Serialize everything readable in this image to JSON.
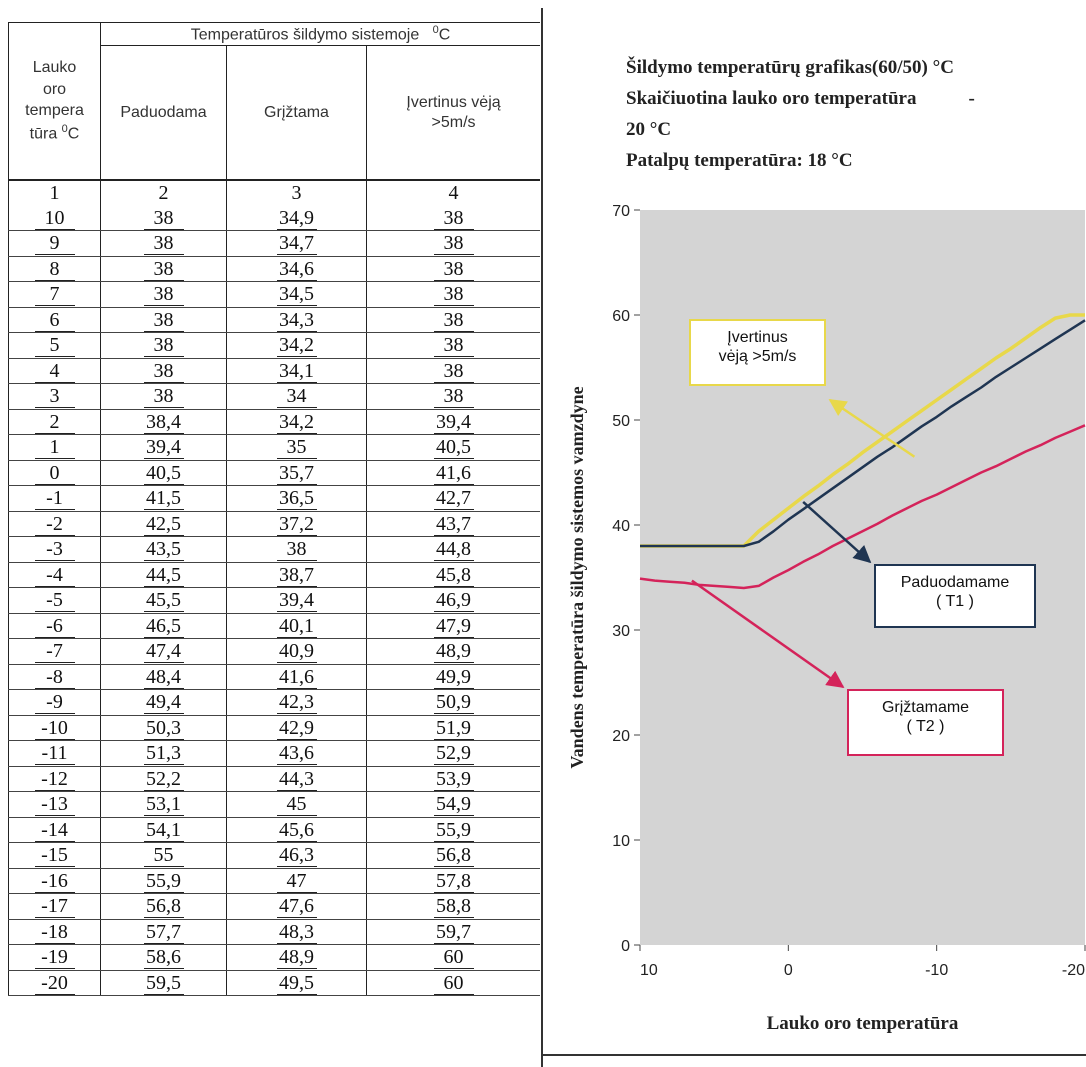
{
  "table": {
    "group_header": "Temperatūros šildymo sistemoje",
    "group_unit_sup": "0",
    "group_unit": "C",
    "col_outdoor": [
      "Lauko",
      "oro",
      "tempera",
      "tūra"
    ],
    "col_outdoor_unit_sup": "0",
    "col_outdoor_unit": "C",
    "col_supply": "Paduodama",
    "col_return": "Grįžtama",
    "col_wind": [
      "Įvertinus vėją",
      ">5m/s"
    ],
    "column_numbers": [
      "1",
      "2",
      "3",
      "4"
    ],
    "rows": [
      [
        "10",
        "38",
        "34,9",
        "38"
      ],
      [
        "9",
        "38",
        "34,7",
        "38"
      ],
      [
        "8",
        "38",
        "34,6",
        "38"
      ],
      [
        "7",
        "38",
        "34,5",
        "38"
      ],
      [
        "6",
        "38",
        "34,3",
        "38"
      ],
      [
        "5",
        "38",
        "34,2",
        "38"
      ],
      [
        "4",
        "38",
        "34,1",
        "38"
      ],
      [
        "3",
        "38",
        "34",
        "38"
      ],
      [
        "2",
        "38,4",
        "34,2",
        "39,4"
      ],
      [
        "1",
        "39,4",
        "35",
        "40,5"
      ],
      [
        "0",
        "40,5",
        "35,7",
        "41,6"
      ],
      [
        "-1",
        "41,5",
        "36,5",
        "42,7"
      ],
      [
        "-2",
        "42,5",
        "37,2",
        "43,7"
      ],
      [
        "-3",
        "43,5",
        "38",
        "44,8"
      ],
      [
        "-4",
        "44,5",
        "38,7",
        "45,8"
      ],
      [
        "-5",
        "45,5",
        "39,4",
        "46,9"
      ],
      [
        "-6",
        "46,5",
        "40,1",
        "47,9"
      ],
      [
        "-7",
        "47,4",
        "40,9",
        "48,9"
      ],
      [
        "-8",
        "48,4",
        "41,6",
        "49,9"
      ],
      [
        "-9",
        "49,4",
        "42,3",
        "50,9"
      ],
      [
        "-10",
        "50,3",
        "42,9",
        "51,9"
      ],
      [
        "-11",
        "51,3",
        "43,6",
        "52,9"
      ],
      [
        "-12",
        "52,2",
        "44,3",
        "53,9"
      ],
      [
        "-13",
        "53,1",
        "45",
        "54,9"
      ],
      [
        "-14",
        "54,1",
        "45,6",
        "55,9"
      ],
      [
        "-15",
        "55",
        "46,3",
        "56,8"
      ],
      [
        "-16",
        "55,9",
        "47",
        "57,8"
      ],
      [
        "-17",
        "56,8",
        "47,6",
        "58,8"
      ],
      [
        "-18",
        "57,7",
        "48,3",
        "59,7"
      ],
      [
        "-19",
        "58,6",
        "48,9",
        "60"
      ],
      [
        "-20",
        "59,5",
        "49,5",
        "60"
      ]
    ]
  },
  "info": {
    "line1": "Šildymo temperatūrų grafikas(60/50) °C",
    "line2": "Skaičiuotina lauko oro temperatūra",
    "line2_dash": "-",
    "line3": "20 °C",
    "line4": "Patalpų temperatūra: 18 °C"
  },
  "chart_data": {
    "type": "line",
    "xlabel": "Lauko oro temperatūra",
    "ylabel": "Vandens temperatūra šildymo sistemos vamzdyne",
    "xlim": [
      10,
      -20
    ],
    "ylim": [
      0,
      70
    ],
    "x_ticks": [
      "10",
      "0",
      "-10",
      "-20"
    ],
    "y_ticks": [
      "0",
      "10",
      "20",
      "30",
      "40",
      "50",
      "60",
      "70"
    ],
    "plot_background": "#d4d4d4",
    "series": [
      {
        "name": "Paduodamame (T1)",
        "color": "#1f3552",
        "x": [
          10,
          9,
          8,
          7,
          6,
          5,
          4,
          3,
          2,
          1,
          0,
          -1,
          -2,
          -3,
          -4,
          -5,
          -6,
          -7,
          -8,
          -9,
          -10,
          -11,
          -12,
          -13,
          -14,
          -15,
          -16,
          -17,
          -18,
          -19,
          -20
        ],
        "y": [
          38,
          38,
          38,
          38,
          38,
          38,
          38,
          38,
          38.4,
          39.4,
          40.5,
          41.5,
          42.5,
          43.5,
          44.5,
          45.5,
          46.5,
          47.4,
          48.4,
          49.4,
          50.3,
          51.3,
          52.2,
          53.1,
          54.1,
          55,
          55.9,
          56.8,
          57.7,
          58.6,
          59.5
        ]
      },
      {
        "name": "Grįžtamame (T2)",
        "color": "#d4235a",
        "x": [
          10,
          9,
          8,
          7,
          6,
          5,
          4,
          3,
          2,
          1,
          0,
          -1,
          -2,
          -3,
          -4,
          -5,
          -6,
          -7,
          -8,
          -9,
          -10,
          -11,
          -12,
          -13,
          -14,
          -15,
          -16,
          -17,
          -18,
          -19,
          -20
        ],
        "y": [
          34.9,
          34.7,
          34.6,
          34.5,
          34.3,
          34.2,
          34.1,
          34,
          34.2,
          35,
          35.7,
          36.5,
          37.2,
          38,
          38.7,
          39.4,
          40.1,
          40.9,
          41.6,
          42.3,
          42.9,
          43.6,
          44.3,
          45,
          45.6,
          46.3,
          47,
          47.6,
          48.3,
          48.9,
          49.5
        ]
      },
      {
        "name": "Įvertinus vėją >5m/s",
        "color": "#e8d84a",
        "x": [
          10,
          9,
          8,
          7,
          6,
          5,
          4,
          3,
          2,
          1,
          0,
          -1,
          -2,
          -3,
          -4,
          -5,
          -6,
          -7,
          -8,
          -9,
          -10,
          -11,
          -12,
          -13,
          -14,
          -15,
          -16,
          -17,
          -18,
          -19,
          -20
        ],
        "y": [
          38,
          38,
          38,
          38,
          38,
          38,
          38,
          38,
          39.4,
          40.5,
          41.6,
          42.7,
          43.7,
          44.8,
          45.8,
          46.9,
          47.9,
          48.9,
          49.9,
          50.9,
          51.9,
          52.9,
          53.9,
          54.9,
          55.9,
          56.8,
          57.8,
          58.8,
          59.7,
          60,
          60
        ]
      }
    ],
    "annotations": [
      {
        "lines": [
          "Įvertinus",
          "vėją >5m/s"
        ],
        "series": 2,
        "border": "#e8d84a"
      },
      {
        "lines": [
          "Paduodamame",
          "( T1 )"
        ],
        "series": 0,
        "border": "#1f3552"
      },
      {
        "lines": [
          "Grįžtamame",
          "( T2 )"
        ],
        "series": 1,
        "border": "#d4235a"
      }
    ]
  }
}
